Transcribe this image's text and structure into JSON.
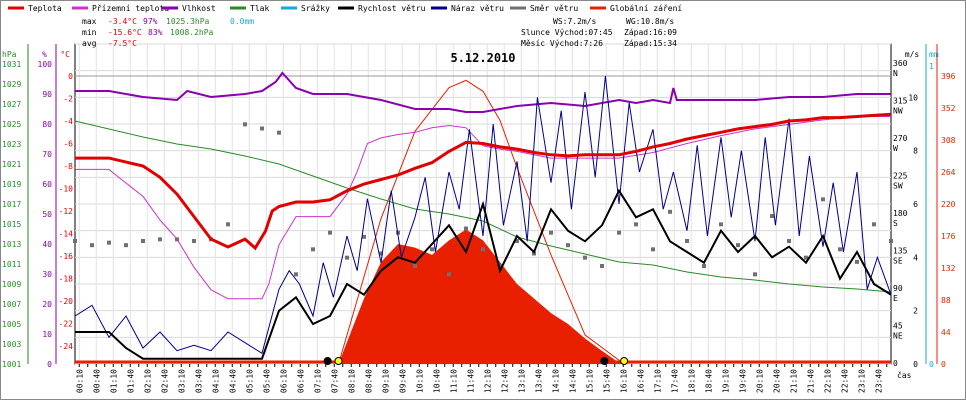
{
  "legend": [
    {
      "label": "Teplota",
      "color": "#e00000"
    },
    {
      "label": "Přízemní teplota",
      "color": "#cc33cc"
    },
    {
      "label": "Vlhkost",
      "color": "#8a00b0"
    },
    {
      "label": "Tlak",
      "color": "#2a8a2a"
    },
    {
      "label": "Srážky",
      "color": "#19a8d8"
    },
    {
      "label": "Rychlost větru",
      "color": "#000000"
    },
    {
      "label": "Náraz větru",
      "color": "#000090"
    },
    {
      "label": "Směr větru",
      "color": "#707070"
    },
    {
      "label": "Globální záření",
      "color": "#e82000"
    }
  ],
  "stats": {
    "max_label": "max",
    "max_temp": "-3.4°C",
    "max_hum": "97%",
    "max_press": "1025.3hPa",
    "max_rain": "0.0mm",
    "min_label": "min",
    "min_temp": "-15.6°C",
    "min_hum": "83%",
    "min_press": "1008.2hPa",
    "avg_label": "avg",
    "avg_temp": "-7.5°C",
    "ws": "WS:7.2m/s",
    "wg": "WG:10.8m/s",
    "sun": "Slunce Východ:07:45",
    "sun_set": "Západ:16:09",
    "moon": "Měsíc  Východ:7:26",
    "moon_set": "Západ:15:34"
  },
  "chart_data": {
    "type": "line",
    "title": "5.12.2010",
    "xlabel": "čas",
    "axes": {
      "pressure": {
        "unit": "hPa",
        "color": "#2a8a2a",
        "ylim": [
          1001,
          1033
        ],
        "ticks": [
          "1031",
          "1029",
          "1027",
          "1025",
          "1023",
          "1021",
          "1019",
          "1017",
          "1015",
          "1013",
          "1011",
          "1009",
          "1007",
          "1005",
          "1003",
          "1001"
        ]
      },
      "humidity": {
        "unit": "%",
        "color": "#8a00b0",
        "ylim": [
          0,
          100
        ],
        "ticks": [
          "100",
          "90",
          "80",
          "70",
          "60",
          "50",
          "40",
          "30",
          "20",
          "10",
          "0"
        ]
      },
      "temperature": {
        "unit": "°C",
        "color": "#e00000",
        "ylim": [
          -24,
          0
        ],
        "ticks": [
          "0",
          "-2",
          "-4",
          "-6",
          "-8",
          "-10",
          "-12",
          "-14",
          "-16",
          "-18",
          "-20",
          "-22",
          "-24"
        ]
      },
      "wind_dir": {
        "unit": "°",
        "ticks": [
          {
            "v": "360",
            "d": "N"
          },
          {
            "v": "315",
            "d": "NW"
          },
          {
            "v": "270",
            "d": "W"
          },
          {
            "v": "225",
            "d": "SW"
          },
          {
            "v": "180",
            "d": "S"
          },
          {
            "v": "135",
            "d": "SE"
          },
          {
            "v": "90",
            "d": "E"
          },
          {
            "v": "45",
            "d": "NE"
          },
          {
            "v": "0",
            "d": ""
          }
        ]
      },
      "wind_speed": {
        "unit": "m/s",
        "ylim": [
          0,
          12
        ],
        "ticks": [
          "10",
          "8",
          "6",
          "4",
          "2",
          "0"
        ]
      },
      "rain": {
        "unit": "mm",
        "color": "#19a8d8",
        "ticks": [
          "1",
          "0"
        ]
      },
      "radiation": {
        "unit": "",
        "color": "#e82000",
        "ylim": [
          0,
          440
        ],
        "ticks": [
          "396",
          "352",
          "308",
          "264",
          "220",
          "176",
          "132",
          "88",
          "44",
          "0"
        ]
      }
    },
    "x_ticks": [
      "00:10",
      "00:25",
      "00:40",
      "00:55",
      "01:10",
      "01:25",
      "01:40",
      "01:55",
      "02:10",
      "02:25",
      "02:40",
      "02:55",
      "03:10",
      "03:25",
      "03:40",
      "03:55",
      "04:10",
      "04:25",
      "04:40",
      "04:55",
      "05:10",
      "05:25",
      "05:40",
      "05:55",
      "06:10",
      "06:25",
      "06:40",
      "06:55",
      "07:10",
      "07:25",
      "07:40",
      "07:55",
      "08:10",
      "08:25",
      "08:40",
      "08:55",
      "09:10",
      "09:25",
      "09:40",
      "09:55",
      "10:10",
      "10:25",
      "10:40",
      "10:55",
      "11:10",
      "11:25",
      "11:40",
      "11:55",
      "12:10",
      "12:25",
      "12:40",
      "12:55",
      "13:10",
      "13:25",
      "13:40",
      "13:55",
      "14:10",
      "14:25",
      "14:40",
      "14:55",
      "15:10",
      "15:25",
      "15:40",
      "15:55",
      "16:10",
      "16:25",
      "16:40",
      "16:55",
      "17:10",
      "17:25",
      "17:40",
      "17:55",
      "18:10",
      "18:25",
      "18:40",
      "18:55",
      "19:10",
      "19:25",
      "19:40",
      "19:55",
      "20:10",
      "20:25",
      "20:40",
      "20:55",
      "21:10",
      "21:25",
      "21:40",
      "21:55",
      "22:10",
      "22:25",
      "22:40",
      "22:55",
      "23:10",
      "23:25",
      "23:40",
      "23:55"
    ],
    "series": [
      {
        "name": "Teplota",
        "axis": "temperature",
        "color": "#e00000",
        "x": [
          0,
          1,
          2,
          2.5,
          3,
          3.5,
          4,
          4.5,
          5,
          5.3,
          5.6,
          5.8,
          6,
          6.5,
          7,
          7.5,
          8,
          8.5,
          9,
          9.5,
          10,
          10.5,
          11,
          11.5,
          12,
          12.5,
          13,
          13.5,
          14,
          14.5,
          15,
          15.5,
          16,
          16.5,
          17,
          17.5,
          18,
          18.5,
          19,
          19.5,
          20,
          20.5,
          21,
          21.5,
          22,
          22.5,
          23,
          23.5,
          24
        ],
        "values": [
          -7.3,
          -7.3,
          -8.0,
          -9.0,
          -10.5,
          -12.5,
          -14.5,
          -15.2,
          -14.5,
          -15.3,
          -13.8,
          -12.0,
          -11.6,
          -11.2,
          -11.2,
          -11.0,
          -10.2,
          -9.6,
          -9.2,
          -8.8,
          -8.2,
          -7.7,
          -6.7,
          -5.9,
          -6.0,
          -6.3,
          -6.5,
          -6.8,
          -7.0,
          -7.1,
          -7.0,
          -7.0,
          -7.0,
          -6.7,
          -6.3,
          -6.0,
          -5.6,
          -5.3,
          -5.0,
          -4.7,
          -4.5,
          -4.3,
          -4.0,
          -3.9,
          -3.7,
          -3.7,
          -3.6,
          -3.5,
          -3.4
        ]
      },
      {
        "name": "Přízemní teplota",
        "axis": "temperature",
        "color": "#cc33cc",
        "x": [
          0,
          1,
          1.2,
          2,
          2.5,
          3,
          3.5,
          4,
          4.5,
          5,
          5.5,
          5.7,
          6,
          6.5,
          7,
          7.5,
          8,
          8.3,
          8.6,
          9,
          9.5,
          10,
          10.5,
          11,
          11.5,
          12,
          12.5,
          13,
          13.5,
          14,
          15,
          16,
          17,
          18,
          19,
          20,
          21,
          22,
          23,
          24
        ],
        "values": [
          -8.3,
          -8.3,
          -8.8,
          -10.7,
          -12.8,
          -14.5,
          -17.0,
          -19.0,
          -19.8,
          -19.8,
          -19.8,
          -18.5,
          -15.0,
          -12.5,
          -12.5,
          -12.5,
          -10.5,
          -8.5,
          -6.0,
          -5.5,
          -5.2,
          -5.0,
          -4.6,
          -4.4,
          -4.6,
          -6.2,
          -6.5,
          -6.7,
          -7.0,
          -7.3,
          -7.3,
          -7.3,
          -6.8,
          -6.0,
          -5.3,
          -4.7,
          -4.3,
          -3.9,
          -3.6,
          -3.6
        ]
      },
      {
        "name": "Vlhkost",
        "axis": "humidity",
        "color": "#8a00b0",
        "x": [
          0,
          1,
          2,
          3,
          3.3,
          4,
          5,
          5.5,
          5.9,
          6.1,
          6.5,
          7,
          8,
          9,
          10,
          10.5,
          11,
          11.5,
          12,
          13,
          14,
          15,
          16,
          16.5,
          17,
          17.5,
          17.6,
          17.7,
          18,
          19,
          20,
          21,
          22,
          23,
          24
        ],
        "values": [
          91,
          91,
          89,
          88,
          91,
          89,
          90,
          91,
          94,
          97,
          92,
          90,
          90,
          88,
          85,
          85,
          85,
          84,
          84,
          86,
          87,
          86,
          88,
          87,
          88,
          87,
          92,
          88,
          88,
          88,
          88,
          89,
          89,
          90,
          90
        ]
      },
      {
        "name": "Tlak",
        "axis": "pressure",
        "color": "#2a8a2a",
        "x": [
          0,
          1,
          2,
          3,
          4,
          5,
          6,
          7,
          8,
          9,
          10,
          11,
          12,
          13,
          14,
          15,
          16,
          17,
          18,
          19,
          20,
          21,
          22,
          23,
          24
        ],
        "values": [
          1025.3,
          1024.5,
          1023.7,
          1023.0,
          1022.5,
          1021.8,
          1021.0,
          1019.8,
          1018.6,
          1017.5,
          1016.5,
          1016.0,
          1015.3,
          1013.7,
          1012.8,
          1012.0,
          1011.2,
          1010.9,
          1010.2,
          1009.7,
          1009.4,
          1009.0,
          1008.7,
          1008.5,
          1008.2
        ]
      },
      {
        "name": "Rychlost větru",
        "axis": "wind_speed",
        "color": "#000000",
        "x": [
          0,
          1,
          1.5,
          2,
          3,
          4,
          5,
          5.5,
          6,
          6.5,
          7,
          7.5,
          8,
          8.5,
          9,
          9.5,
          10,
          10.5,
          11,
          11.5,
          12,
          12.5,
          13,
          13.5,
          14,
          14.5,
          15,
          15.5,
          16,
          16.5,
          17,
          17.5,
          18,
          18.5,
          19,
          19.5,
          20,
          20.5,
          21,
          21.5,
          22,
          22.5,
          23,
          23.5,
          24
        ],
        "values": [
          1.2,
          1.2,
          0.6,
          0.2,
          0.2,
          0.2,
          0.2,
          0.2,
          2.0,
          2.5,
          1.5,
          1.8,
          3.0,
          2.6,
          3.5,
          4.0,
          3.8,
          4.5,
          5.2,
          4.2,
          6.0,
          3.5,
          4.8,
          4.2,
          5.8,
          5.0,
          4.6,
          5.2,
          6.5,
          5.5,
          5.8,
          4.6,
          4.2,
          3.8,
          5.0,
          4.2,
          4.8,
          4.0,
          4.4,
          3.8,
          4.8,
          3.2,
          4.2,
          3.0,
          2.6
        ]
      },
      {
        "name": "Náraz větru",
        "axis": "wind_speed",
        "color": "#000090",
        "x": [
          0,
          0.5,
          1,
          1.5,
          2,
          2.5,
          3,
          3.5,
          4,
          4.5,
          5,
          5.5,
          6,
          6.3,
          6.6,
          7,
          7.3,
          7.6,
          8,
          8.3,
          8.6,
          9,
          9.3,
          9.6,
          10,
          10.3,
          10.6,
          11,
          11.3,
          11.6,
          12,
          12.3,
          12.6,
          13,
          13.3,
          13.6,
          14,
          14.3,
          14.6,
          15,
          15.3,
          15.6,
          16,
          16.3,
          16.6,
          17,
          17.3,
          17.6,
          18,
          18.3,
          18.6,
          19,
          19.3,
          19.6,
          20,
          20.3,
          20.6,
          21,
          21.3,
          21.6,
          22,
          22.3,
          22.6,
          23,
          23.3,
          23.6,
          24
        ],
        "values": [
          1.8,
          2.2,
          1.0,
          1.8,
          0.6,
          1.2,
          0.5,
          0.7,
          0.5,
          1.2,
          0.8,
          0.4,
          2.8,
          3.5,
          3.0,
          1.8,
          3.8,
          2.5,
          4.8,
          3.5,
          6.2,
          3.8,
          6.5,
          4.0,
          5.5,
          7.0,
          4.2,
          7.2,
          5.8,
          8.8,
          4.8,
          9.0,
          5.2,
          7.6,
          4.6,
          10.0,
          6.8,
          9.5,
          5.8,
          10.2,
          7.0,
          10.8,
          6.0,
          9.8,
          7.2,
          8.8,
          5.8,
          7.2,
          5.0,
          8.2,
          4.8,
          8.5,
          5.5,
          8.0,
          4.6,
          8.5,
          5.2,
          9.2,
          4.8,
          7.8,
          4.4,
          6.8,
          4.2,
          7.2,
          2.8,
          4.0,
          2.6
        ]
      },
      {
        "name": "Globální záření",
        "axis": "radiation",
        "color": "#e82000",
        "x": [
          7.75,
          8,
          8.5,
          9,
          9.5,
          10,
          10.5,
          11,
          11.5,
          12,
          12.5,
          13,
          13.5,
          14,
          14.5,
          15,
          15.5,
          15.9,
          16.15
        ],
        "values": [
          0,
          30,
          90,
          140,
          165,
          160,
          150,
          170,
          185,
          170,
          140,
          110,
          90,
          70,
          55,
          35,
          18,
          5,
          0
        ]
      }
    ],
    "theoretical_radiation": {
      "color": "#e82000",
      "x": [
        7.75,
        9,
        10,
        11,
        11.5,
        12,
        12.5,
        13,
        14,
        15,
        16.15
      ],
      "values": [
        0,
        200,
        320,
        380,
        390,
        375,
        335,
        270,
        150,
        40,
        0
      ]
    },
    "wind_direction": {
      "axis": "wind_dir",
      "color": "#707070",
      "x": [
        0,
        0.5,
        1,
        1.5,
        2,
        2.5,
        3,
        3.5,
        4,
        4.5,
        5,
        5.5,
        6,
        6.5,
        7,
        7.5,
        8,
        8.5,
        9,
        9.5,
        10,
        10.5,
        11,
        11.5,
        12,
        12.5,
        13,
        13.5,
        14,
        14.5,
        15,
        15.5,
        16,
        16.5,
        17,
        17.5,
        18,
        18.5,
        19,
        19.5,
        20,
        20.5,
        21,
        21.5,
        22,
        22.5,
        23,
        23.5,
        24
      ],
      "values": [
        150,
        145,
        148,
        145,
        150,
        152,
        152,
        150,
        152,
        170,
        290,
        285,
        280,
        110,
        140,
        160,
        130,
        155,
        135,
        160,
        120,
        140,
        110,
        165,
        140,
        120,
        150,
        135,
        160,
        145,
        130,
        120,
        160,
        170,
        140,
        185,
        150,
        120,
        170,
        145,
        110,
        180,
        150,
        130,
        200,
        140,
        125,
        170,
        150
      ]
    }
  },
  "markers": [
    {
      "name": "sunrise",
      "x": 7.75,
      "color": "#ffff00"
    },
    {
      "name": "moonrise",
      "x": 7.43,
      "color": "#000000"
    },
    {
      "name": "moonset",
      "x": 15.57,
      "color": "#000000"
    },
    {
      "name": "sunset",
      "x": 16.15,
      "color": "#ffff00"
    }
  ]
}
